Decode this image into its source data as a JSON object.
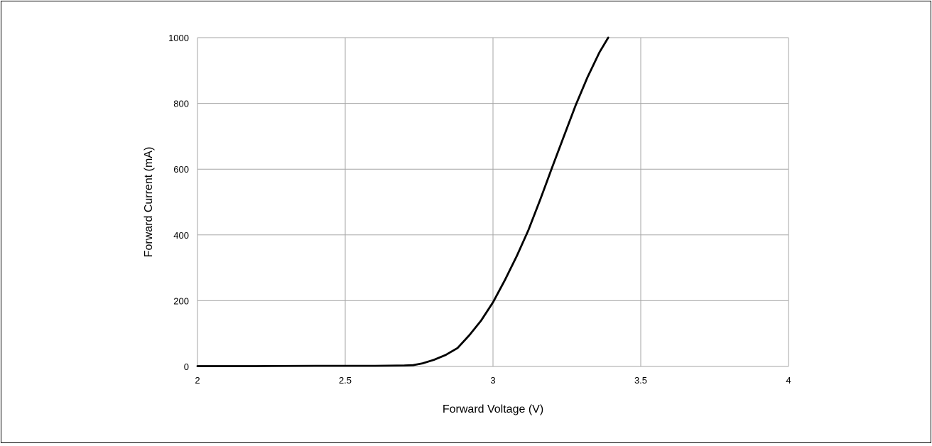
{
  "chart_data": {
    "type": "line",
    "title": "",
    "xlabel": "Forward Voltage (V)",
    "ylabel": "Forward Current (mA)",
    "xlim": [
      2,
      4
    ],
    "ylim": [
      0,
      1000
    ],
    "x_ticks": [
      "2",
      "2.5",
      "3",
      "3.5",
      "4"
    ],
    "y_ticks": [
      "0",
      "200",
      "400",
      "600",
      "800",
      "1000"
    ],
    "grid": true,
    "legend": "none",
    "line_color": "#000000",
    "grid_color": "#a6a6a6",
    "series": [
      {
        "x": [
          2.0,
          2.2,
          2.4,
          2.6,
          2.7,
          2.73,
          2.76,
          2.8,
          2.84,
          2.88,
          2.92,
          2.96,
          3.0,
          3.04,
          3.08,
          3.12,
          3.16,
          3.2,
          3.24,
          3.28,
          3.32,
          3.36,
          3.39
        ],
        "y": [
          1,
          1,
          2,
          2,
          3,
          4,
          9,
          20,
          35,
          56,
          95,
          140,
          195,
          262,
          335,
          415,
          508,
          605,
          700,
          795,
          880,
          955,
          1000
        ]
      }
    ]
  }
}
